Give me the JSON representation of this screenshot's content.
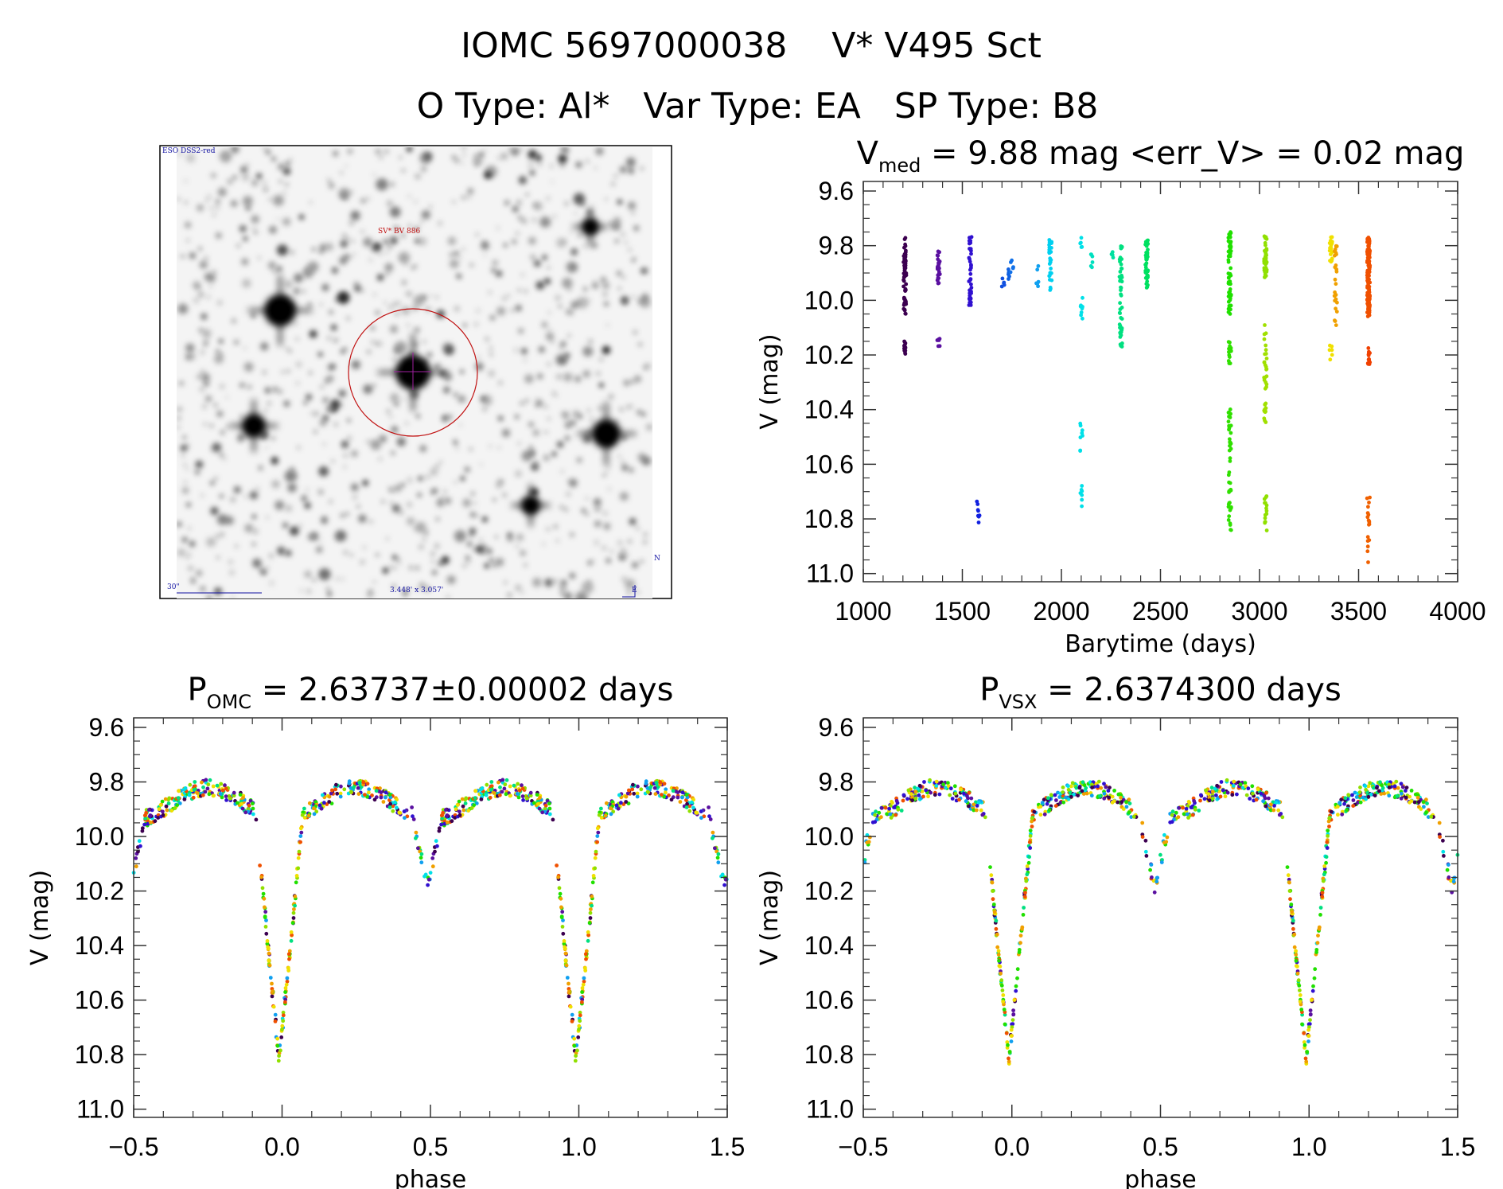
{
  "header": {
    "title": "IOMC 5697000038    V* V495 Sct",
    "subtitle": "O Type: Al*   Var Type: EA   SP Type: B8"
  },
  "sky_image": {
    "survey_label": "ESO DSS2-red",
    "object_label": "SV* BV 886",
    "scale_label": "30\"",
    "fov_label": "3.448' x 3.057'",
    "north_label": "N",
    "east_label": "E"
  },
  "chart_data": [
    {
      "type": "scatter",
      "title_main": "V",
      "title_sub": "med",
      "title_rest": " = 9.88 mag <err_V> = 0.02 mag",
      "xlabel": "Barytime (days)",
      "ylabel": "V (mag)",
      "xlim": [
        1000,
        4000
      ],
      "ylim": [
        9.565,
        11.03
      ],
      "y_inverted": true,
      "xticks": [
        1000,
        1500,
        2000,
        2500,
        3000,
        3500,
        4000
      ],
      "yticks": [
        "9.6",
        "9.8",
        "10.0",
        "10.2",
        "10.4",
        "10.6",
        "10.8",
        "11.0"
      ],
      "clusters": [
        {
          "t": 1210,
          "v": [
            9.77,
            10.05
          ],
          "n": 60,
          "color": "#3c0050"
        },
        {
          "t": 1210,
          "v": [
            10.15,
            10.2
          ],
          "n": 12,
          "color": "#3c0050"
        },
        {
          "t": 1380,
          "v": [
            9.82,
            9.94
          ],
          "n": 30,
          "color": "#5a10a0"
        },
        {
          "t": 1380,
          "v": [
            10.13,
            10.17
          ],
          "n": 6,
          "color": "#5a10a0"
        },
        {
          "t": 1540,
          "v": [
            9.76,
            10.02
          ],
          "n": 40,
          "color": "#3010d0"
        },
        {
          "t": 1580,
          "v": [
            10.72,
            10.82
          ],
          "n": 8,
          "color": "#1020e0"
        },
        {
          "t": 1705,
          "v": [
            9.92,
            9.95
          ],
          "n": 5,
          "color": "#1050e0"
        },
        {
          "t": 1730,
          "v": [
            9.88,
            9.93
          ],
          "n": 5,
          "color": "#1060e0"
        },
        {
          "t": 1750,
          "v": [
            9.85,
            9.92
          ],
          "n": 6,
          "color": "#1070e8"
        },
        {
          "t": 1880,
          "v": [
            9.87,
            9.95
          ],
          "n": 6,
          "color": "#10a0f0"
        },
        {
          "t": 1945,
          "v": [
            9.77,
            9.97
          ],
          "n": 30,
          "color": "#00d0f0"
        },
        {
          "t": 2100,
          "v": [
            9.77,
            9.81
          ],
          "n": 5,
          "color": "#00e0e8"
        },
        {
          "t": 2100,
          "v": [
            9.98,
            10.07
          ],
          "n": 10,
          "color": "#00e0e8"
        },
        {
          "t": 2100,
          "v": [
            10.45,
            10.57
          ],
          "n": 8,
          "color": "#00e0e8"
        },
        {
          "t": 2100,
          "v": [
            10.67,
            10.76
          ],
          "n": 7,
          "color": "#00e0e8"
        },
        {
          "t": 2150,
          "v": [
            9.83,
            9.89
          ],
          "n": 6,
          "color": "#00e0c0"
        },
        {
          "t": 2260,
          "v": [
            9.82,
            9.85
          ],
          "n": 4,
          "color": "#00e0a0"
        },
        {
          "t": 2300,
          "v": [
            9.8,
            10.17
          ],
          "n": 50,
          "color": "#00e080"
        },
        {
          "t": 2430,
          "v": [
            9.77,
            9.96
          ],
          "n": 40,
          "color": "#00e060"
        },
        {
          "t": 2850,
          "v": [
            9.75,
            10.07
          ],
          "n": 60,
          "color": "#20e000"
        },
        {
          "t": 2850,
          "v": [
            10.15,
            10.24
          ],
          "n": 15,
          "color": "#30e000"
        },
        {
          "t": 2850,
          "v": [
            10.39,
            10.86
          ],
          "n": 45,
          "color": "#30e000"
        },
        {
          "t": 3030,
          "v": [
            9.76,
            9.92
          ],
          "n": 40,
          "color": "#90e000"
        },
        {
          "t": 3030,
          "v": [
            10.09,
            10.46
          ],
          "n": 35,
          "color": "#a0e000"
        },
        {
          "t": 3030,
          "v": [
            10.71,
            10.85
          ],
          "n": 15,
          "color": "#90e000"
        },
        {
          "t": 3360,
          "v": [
            9.76,
            9.87
          ],
          "n": 20,
          "color": "#f0e000"
        },
        {
          "t": 3360,
          "v": [
            10.14,
            10.22
          ],
          "n": 6,
          "color": "#f0e000"
        },
        {
          "t": 3385,
          "v": [
            9.8,
            10.1
          ],
          "n": 25,
          "color": "#f0a000"
        },
        {
          "t": 3550,
          "v": [
            9.77,
            10.06
          ],
          "n": 120,
          "color": "#f05000"
        },
        {
          "t": 3550,
          "v": [
            10.17,
            10.24
          ],
          "n": 15,
          "color": "#f04000"
        },
        {
          "t": 3550,
          "v": [
            10.72,
            10.98
          ],
          "n": 18,
          "color": "#f06000"
        }
      ]
    },
    {
      "type": "scatter",
      "title_main": "P",
      "title_sub": "OMC",
      "title_rest": " = 2.63737±0.00002 days",
      "xlabel": "phase",
      "ylabel": "V (mag)",
      "xlim": [
        -0.5,
        1.5
      ],
      "ylim": [
        9.565,
        11.03
      ],
      "y_inverted": true,
      "xticks": [
        "−0.5",
        "0.0",
        "0.5",
        "1.0",
        "1.5"
      ],
      "yticks": [
        "9.6",
        "9.8",
        "10.0",
        "10.2",
        "10.4",
        "10.6",
        "10.8",
        "11.0"
      ],
      "model": {
        "max_mag": 9.82,
        "quadrature_mag": 9.94,
        "primary_min": 10.82,
        "primary_phase": -0.01,
        "primary_halfwidth": 0.08,
        "secondary_min": 10.2,
        "secondary_phase": 0.49,
        "secondary_halfwidth": 0.05
      }
    },
    {
      "type": "scatter",
      "title_main": "P",
      "title_sub": "VSX",
      "title_rest": " = 2.6374300 days",
      "xlabel": "phase",
      "ylabel": "V (mag)",
      "xlim": [
        -0.5,
        1.5
      ],
      "ylim": [
        9.565,
        11.03
      ],
      "y_inverted": true,
      "xticks": [
        "−0.5",
        "0.0",
        "0.5",
        "1.0",
        "1.5"
      ],
      "yticks": [
        "9.6",
        "9.8",
        "10.0",
        "10.2",
        "10.4",
        "10.6",
        "10.8",
        "11.0"
      ],
      "model": {
        "max_mag": 9.82,
        "quadrature_mag": 9.94,
        "primary_min": 10.82,
        "primary_phase": -0.01,
        "primary_halfwidth": 0.08,
        "secondary_min": 10.2,
        "secondary_phase": 0.48,
        "secondary_halfwidth": 0.05
      }
    }
  ],
  "palette": [
    "#3c0050",
    "#5a10a0",
    "#3010d0",
    "#10a0f0",
    "#00e0e8",
    "#00e080",
    "#20e000",
    "#90e000",
    "#f0e000",
    "#f0a000",
    "#f05000"
  ]
}
